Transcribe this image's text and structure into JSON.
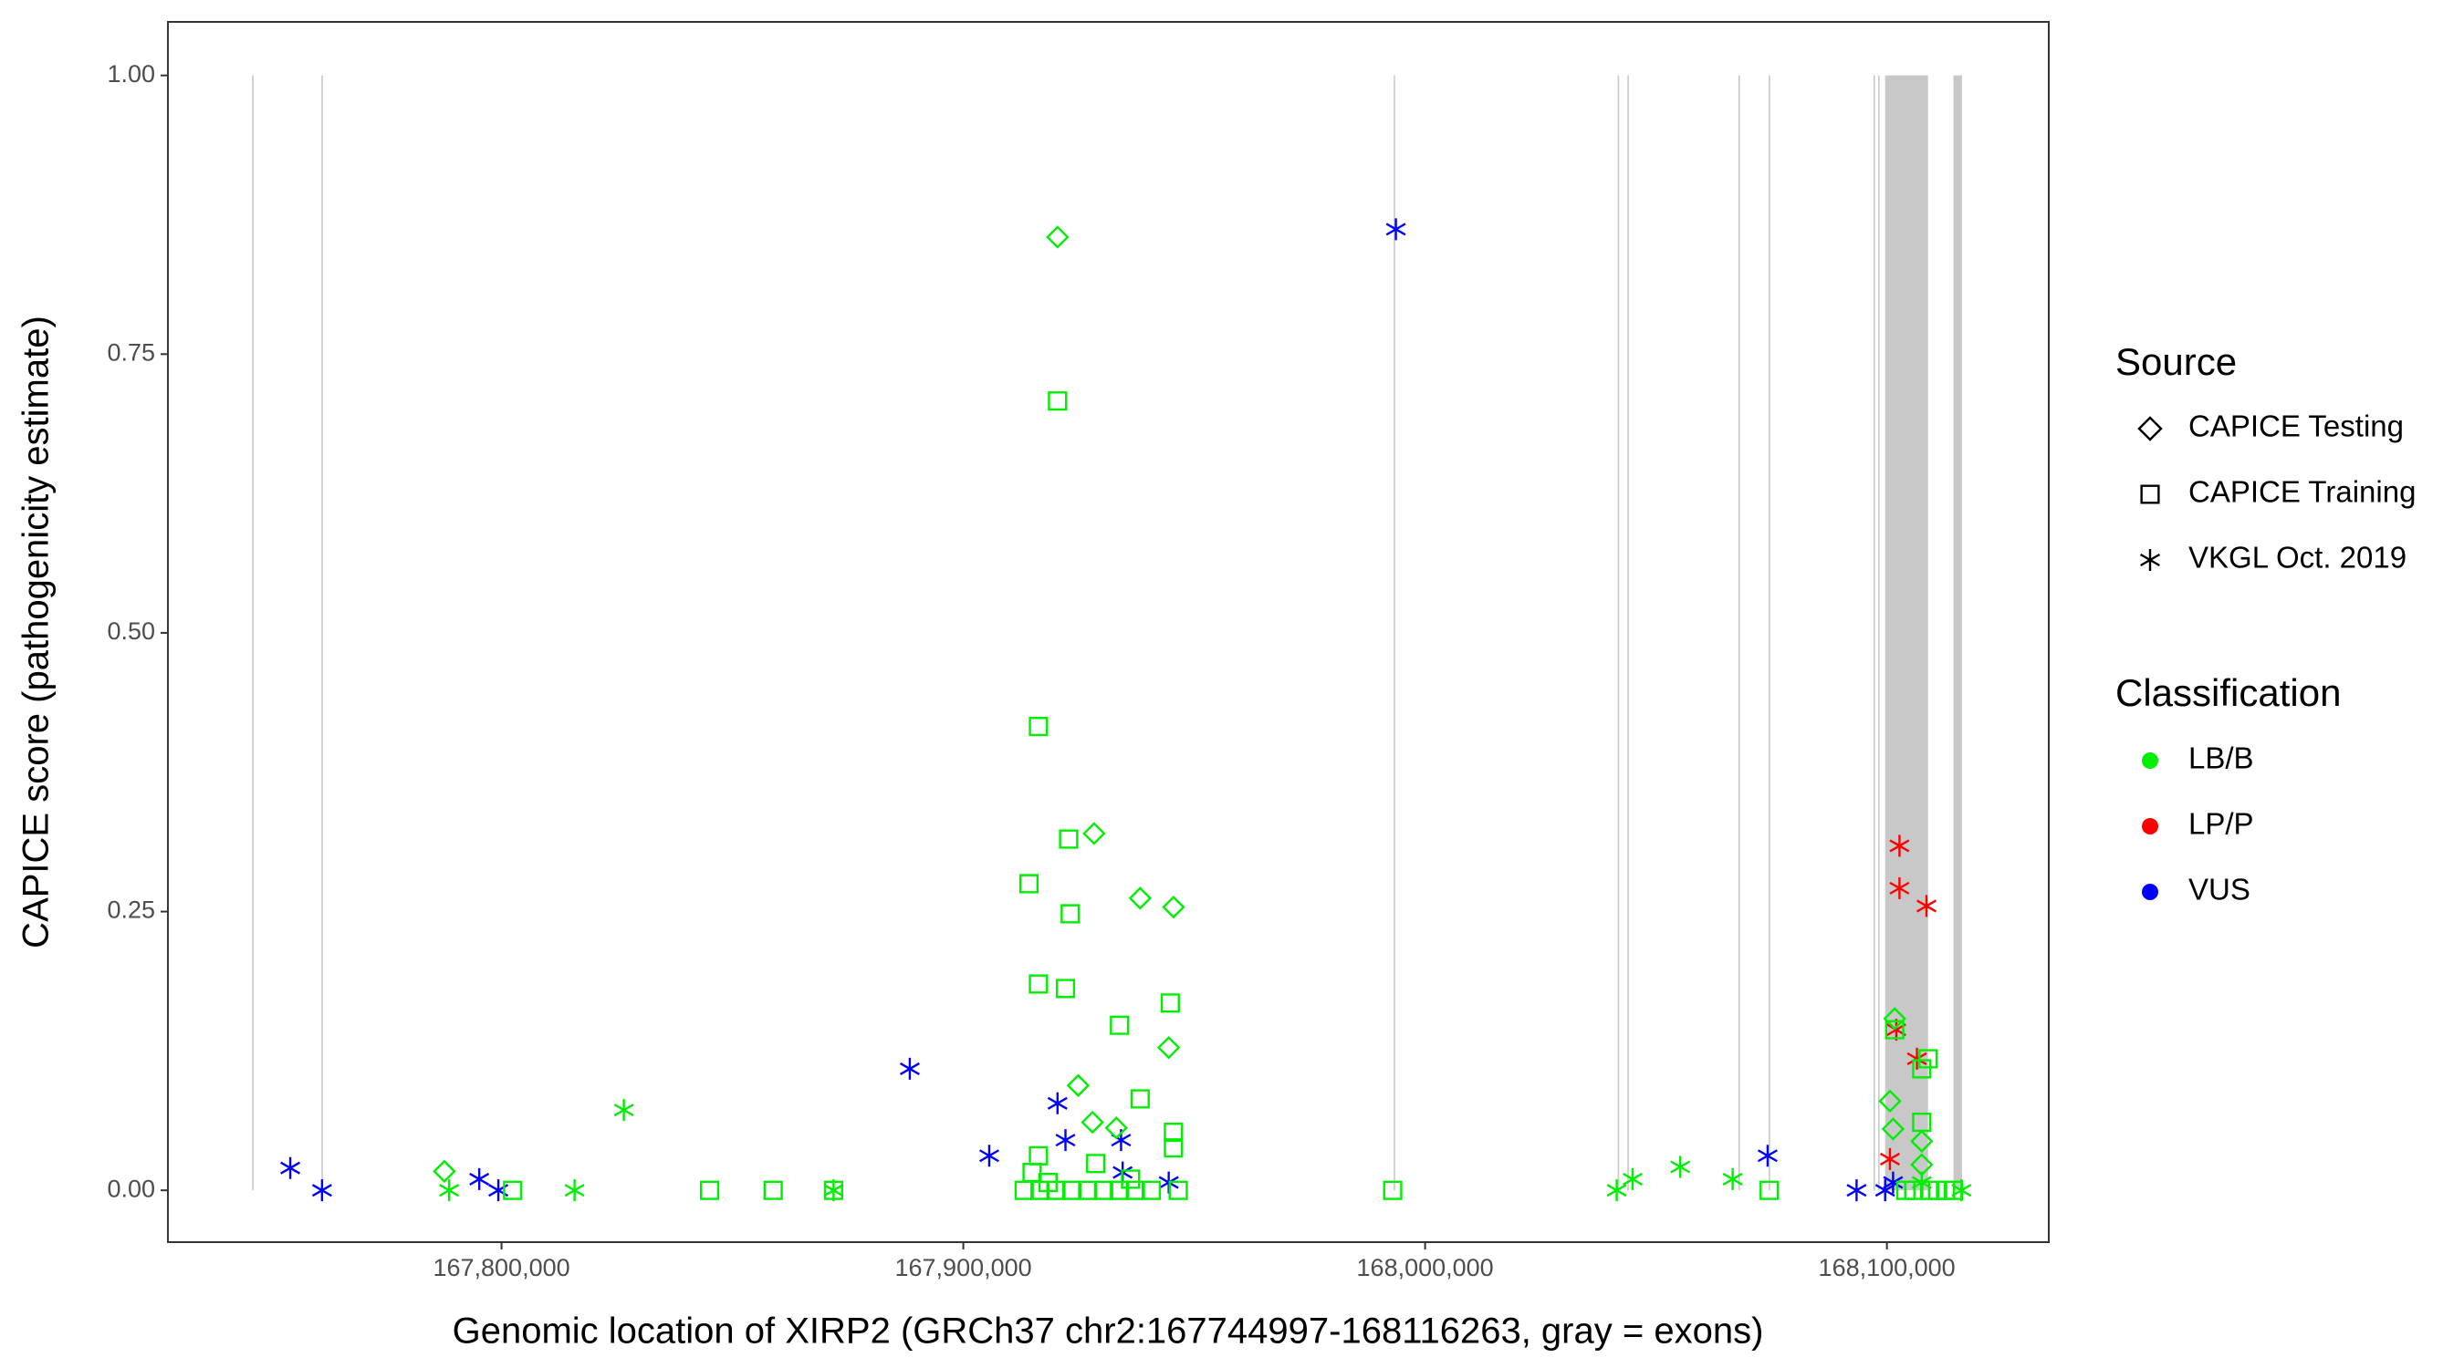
{
  "chart_data": {
    "type": "scatter",
    "x_label": "Genomic location of XIRP2 (GRCh37 chr2:167744997-168116263, gray = exons)",
    "y_label": "CAPICE score (pathogenicity estimate)",
    "xlim": [
      167727760,
      168135050
    ],
    "ylim": [
      -0.0465,
      1.048
    ],
    "xticks": [
      {
        "value": 167800000,
        "label": "167,800,000"
      },
      {
        "value": 167900000,
        "label": "167,900,000"
      },
      {
        "value": 168000000,
        "label": "168,000,000"
      },
      {
        "value": 168100000,
        "label": "168,100,000"
      }
    ],
    "yticks": [
      {
        "value": 0,
        "label": "0.00"
      },
      {
        "value": 0.25,
        "label": "0.25"
      },
      {
        "value": 0.5,
        "label": "0.50"
      },
      {
        "value": 0.75,
        "label": "0.75"
      },
      {
        "value": 1,
        "label": "1.00"
      }
    ],
    "exon_color": "#c8c8c8",
    "exons": [
      [
        167746000,
        167746300
      ],
      [
        167761000,
        167761300
      ],
      [
        167993200,
        167993500
      ],
      [
        168041700,
        168042000
      ],
      [
        168043800,
        168044100
      ],
      [
        168067850,
        168068150
      ],
      [
        168074400,
        168074700
      ],
      [
        168097100,
        168097400
      ],
      [
        168098100,
        168098400
      ],
      [
        168099620,
        168108910
      ],
      [
        168114410,
        168116263
      ]
    ],
    "legends": [
      {
        "title": "Source",
        "entries": [
          "CAPICE Testing",
          "CAPICE Training",
          "VKGL Oct. 2019"
        ],
        "shapes": [
          "diamond",
          "square",
          "asterisk"
        ]
      },
      {
        "title": "Classification",
        "entries": [
          "LB/B",
          "LP/P",
          "VUS"
        ],
        "colors": [
          "#00ee00",
          "#ff0000",
          "#0000ff"
        ]
      }
    ],
    "points": {
      "x": [
        167754250,
        167761130,
        167795180,
        167799310,
        167888410,
        167905610,
        167920400,
        167922120,
        167934160,
        167934500,
        167944480,
        167993670,
        168074170,
        168093430,
        168099620,
        168101340,
        167788650,
        167815820,
        167826490,
        167871900,
        168041490,
        168044930,
        168055250,
        168066600,
        168107540,
        168116140,
        168102720,
        168102720,
        168108570,
        168102030,
        168106500,
        168100660,
        167787620,
        167920400,
        167928310,
        167938290,
        167945510,
        167944480,
        167924870,
        167927970,
        167933130,
        168101690,
        168100660,
        168101340,
        168107540,
        168107540,
        167802410,
        167845060,
        167858820,
        167871900,
        167916270,
        167914210,
        167922810,
        167920400,
        167923150,
        167916270,
        167922120,
        167933820,
        167944820,
        167938290,
        167945510,
        167945510,
        167916270,
        167914890,
        167918340,
        167928660,
        167936220,
        167992980,
        168074510,
        168101690,
        168107540,
        168108910,
        168107540,
        168109260,
        168114410,
        167913180,
        167916620,
        167920060,
        167923500,
        167926940,
        167930380,
        167933820,
        167937260,
        167940700,
        167946540,
        168104100,
        168105820,
        168110980,
        168112700
      ],
      "y": [
        0.02,
        0,
        0.01,
        0,
        0.109,
        0.031,
        0.078,
        0.045,
        0.045,
        0.016,
        0.007,
        0.862,
        0.031,
        0,
        0,
        0.007,
        0,
        0,
        0.072,
        0,
        0,
        0.01,
        0.021,
        0.01,
        0.007,
        0,
        0.309,
        0.271,
        0.255,
        0.144,
        0.118,
        0.028,
        0.017,
        0.855,
        0.32,
        0.262,
        0.254,
        0.128,
        0.094,
        0.061,
        0.056,
        0.154,
        0.08,
        0.055,
        0.044,
        0.023,
        0,
        0,
        0,
        0,
        0.416,
        0.275,
        0.315,
        0.708,
        0.248,
        0.185,
        0.181,
        0.148,
        0.168,
        0.082,
        0.052,
        0.038,
        0.031,
        0.016,
        0.007,
        0.024,
        0.01,
        0,
        0,
        0.144,
        0.109,
        0.118,
        0.061,
        0,
        0,
        0,
        0,
        0,
        0,
        0,
        0,
        0,
        0,
        0,
        0,
        0,
        0,
        0,
        0
      ],
      "source": [
        "VKGL Oct. 2019",
        "VKGL Oct. 2019",
        "VKGL Oct. 2019",
        "VKGL Oct. 2019",
        "VKGL Oct. 2019",
        "VKGL Oct. 2019",
        "VKGL Oct. 2019",
        "VKGL Oct. 2019",
        "VKGL Oct. 2019",
        "VKGL Oct. 2019",
        "VKGL Oct. 2019",
        "VKGL Oct. 2019",
        "VKGL Oct. 2019",
        "VKGL Oct. 2019",
        "VKGL Oct. 2019",
        "VKGL Oct. 2019",
        "VKGL Oct. 2019",
        "VKGL Oct. 2019",
        "VKGL Oct. 2019",
        "VKGL Oct. 2019",
        "VKGL Oct. 2019",
        "VKGL Oct. 2019",
        "VKGL Oct. 2019",
        "VKGL Oct. 2019",
        "VKGL Oct. 2019",
        "VKGL Oct. 2019",
        "VKGL Oct. 2019",
        "VKGL Oct. 2019",
        "VKGL Oct. 2019",
        "VKGL Oct. 2019",
        "VKGL Oct. 2019",
        "VKGL Oct. 2019",
        "CAPICE Testing",
        "CAPICE Testing",
        "CAPICE Testing",
        "CAPICE Testing",
        "CAPICE Testing",
        "CAPICE Testing",
        "CAPICE Testing",
        "CAPICE Testing",
        "CAPICE Testing",
        "CAPICE Testing",
        "CAPICE Testing",
        "CAPICE Testing",
        "CAPICE Testing",
        "CAPICE Testing",
        "CAPICE Training",
        "CAPICE Training",
        "CAPICE Training",
        "CAPICE Training",
        "CAPICE Training",
        "CAPICE Training",
        "CAPICE Training",
        "CAPICE Training",
        "CAPICE Training",
        "CAPICE Training",
        "CAPICE Training",
        "CAPICE Training",
        "CAPICE Training",
        "CAPICE Training",
        "CAPICE Training",
        "CAPICE Training",
        "CAPICE Training",
        "CAPICE Training",
        "CAPICE Training",
        "CAPICE Training",
        "CAPICE Training",
        "CAPICE Training",
        "CAPICE Training",
        "CAPICE Training",
        "CAPICE Training",
        "CAPICE Training",
        "CAPICE Training",
        "CAPICE Training",
        "CAPICE Training",
        "CAPICE Training",
        "CAPICE Training",
        "CAPICE Training",
        "CAPICE Training",
        "CAPICE Training",
        "CAPICE Training",
        "CAPICE Training",
        "CAPICE Training",
        "CAPICE Training",
        "CAPICE Training",
        "CAPICE Training",
        "CAPICE Training",
        "CAPICE Training",
        "CAPICE Training"
      ],
      "classification": [
        "VUS",
        "VUS",
        "VUS",
        "VUS",
        "VUS",
        "VUS",
        "VUS",
        "VUS",
        "VUS",
        "VUS",
        "VUS",
        "VUS",
        "VUS",
        "VUS",
        "VUS",
        "VUS",
        "LB/B",
        "LB/B",
        "LB/B",
        "LB/B",
        "LB/B",
        "LB/B",
        "LB/B",
        "LB/B",
        "LB/B",
        "LB/B",
        "LP/P",
        "LP/P",
        "LP/P",
        "LP/P",
        "LP/P",
        "LP/P",
        "LB/B",
        "LB/B",
        "LB/B",
        "LB/B",
        "LB/B",
        "LB/B",
        "LB/B",
        "LB/B",
        "LB/B",
        "LB/B",
        "LB/B",
        "LB/B",
        "LB/B",
        "LB/B",
        "LB/B",
        "LB/B",
        "LB/B",
        "LB/B",
        "LB/B",
        "LB/B",
        "LB/B",
        "LB/B",
        "LB/B",
        "LB/B",
        "LB/B",
        "LB/B",
        "LB/B",
        "LB/B",
        "LB/B",
        "LB/B",
        "LB/B",
        "LB/B",
        "LB/B",
        "LB/B",
        "LB/B",
        "LB/B",
        "LB/B",
        "LB/B",
        "LB/B",
        "LB/B",
        "LB/B",
        "LB/B",
        "LB/B",
        "LB/B",
        "LB/B",
        "LB/B",
        "LB/B",
        "LB/B",
        "LB/B",
        "LB/B",
        "LB/B",
        "LB/B",
        "LB/B",
        "LB/B",
        "LB/B",
        "LB/B",
        "LB/B"
      ]
    }
  }
}
